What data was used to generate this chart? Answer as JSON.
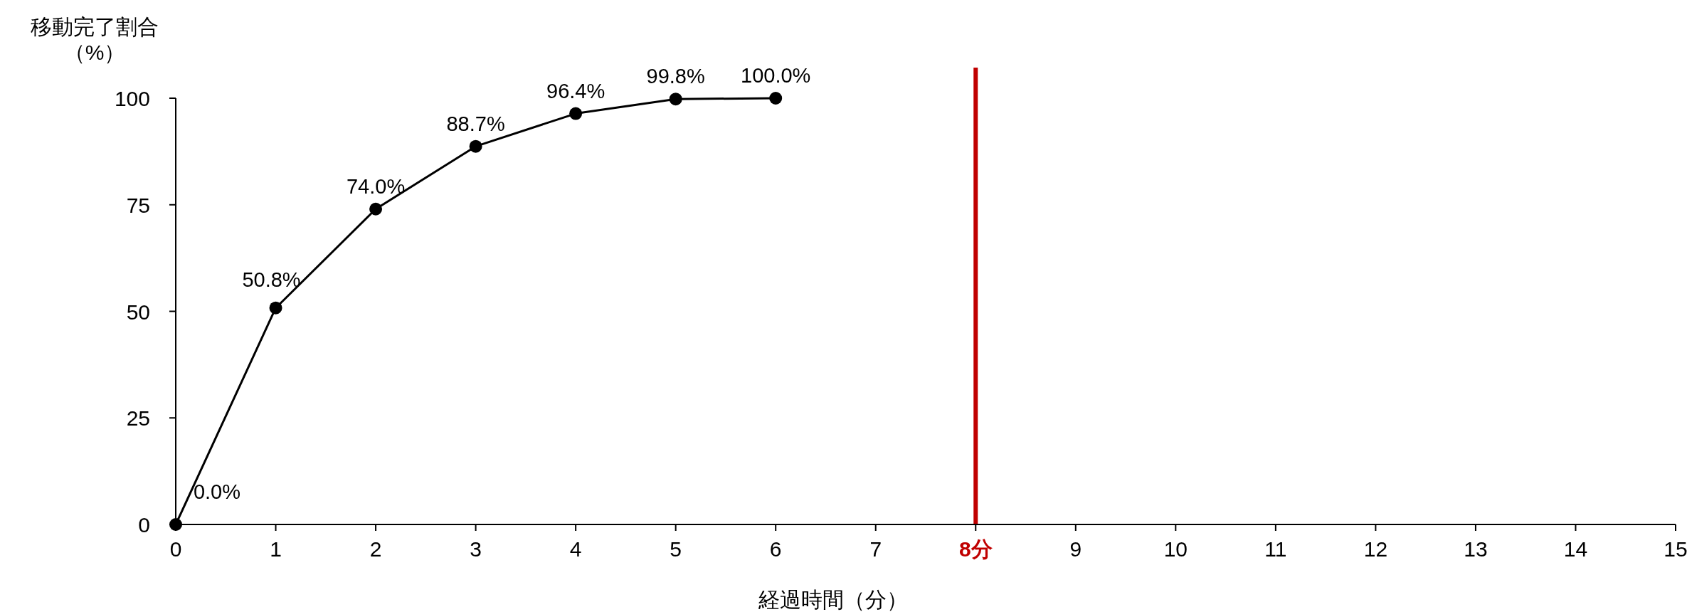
{
  "chart_data": {
    "type": "line",
    "ylabel": "移動完了割合（%）",
    "xlabel": "経過時間（分）",
    "x": [
      0,
      1,
      2,
      3,
      4,
      5,
      6
    ],
    "series": [
      {
        "color": "#000000",
        "values": [
          0,
          50.8,
          74.0,
          88.7,
          96.4,
          99.8,
          100.0
        ],
        "value_labels": [
          "0.0%",
          "50.8%",
          "74.0%",
          "88.7%",
          "96.4%",
          "99.8%",
          "100.0%"
        ]
      }
    ],
    "xlim": [
      0,
      15
    ],
    "xticks": [
      0,
      1,
      2,
      3,
      4,
      5,
      6,
      7,
      {
        "value": 8,
        "label": "8分"
      },
      9,
      10,
      11,
      12,
      13,
      14,
      15
    ],
    "ylim": [
      0,
      100
    ],
    "yticks": [
      0,
      25,
      50,
      75,
      100
    ],
    "ref_lines": [
      {
        "axis": "x",
        "value": 8,
        "color": "#c00000"
      }
    ],
    "marker": "circle",
    "line_style": "solid",
    "grid": false
  }
}
